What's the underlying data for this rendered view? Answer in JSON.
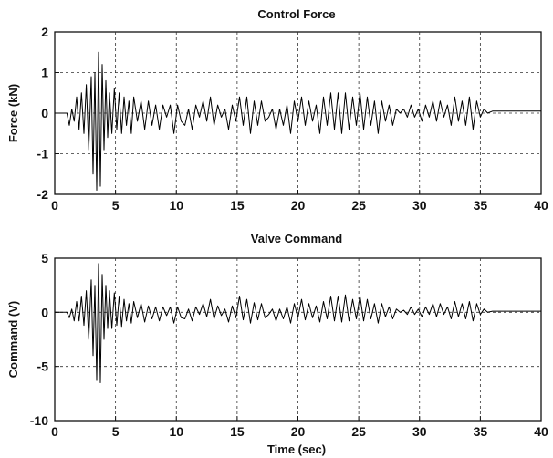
{
  "chart_data": [
    {
      "type": "line",
      "title": "Control Force",
      "xlabel": "",
      "ylabel": "Force (kN)",
      "xlim": [
        0,
        40
      ],
      "ylim": [
        -2,
        2
      ],
      "xticks": [
        0,
        5,
        10,
        15,
        20,
        25,
        30,
        35,
        40
      ],
      "yticks": [
        -2,
        -1,
        0,
        1,
        2
      ],
      "xtick_labels": [
        "0",
        "5",
        "10",
        "15",
        "20",
        "25",
        "30",
        "35",
        "40"
      ],
      "ytick_labels": [
        "-2",
        "-1",
        "0",
        "1",
        "2"
      ],
      "grid": true,
      "series": [
        {
          "x": [
            0,
            1.0,
            1.2,
            1.4,
            1.6,
            1.8,
            2.0,
            2.2,
            2.4,
            2.6,
            2.8,
            3.0,
            3.15,
            3.3,
            3.45,
            3.6,
            3.75,
            3.9,
            4.05,
            4.2,
            4.35,
            4.5,
            4.7,
            4.9,
            5.1,
            5.3,
            5.5,
            5.7,
            5.9,
            6.1,
            6.3,
            6.5,
            6.8,
            7.1,
            7.4,
            7.7,
            8.0,
            8.3,
            8.6,
            8.9,
            9.2,
            9.5,
            9.8,
            10.1,
            10.4,
            10.7,
            11.0,
            11.3,
            11.6,
            11.9,
            12.2,
            12.5,
            12.8,
            13.1,
            13.4,
            13.7,
            14.0,
            14.3,
            14.6,
            14.9,
            15.2,
            15.5,
            15.8,
            16.1,
            16.4,
            16.7,
            17.0,
            17.3,
            17.6,
            17.9,
            18.2,
            18.5,
            18.8,
            19.1,
            19.4,
            19.7,
            20.0,
            20.3,
            20.6,
            20.9,
            21.2,
            21.5,
            21.8,
            22.1,
            22.4,
            22.7,
            23.0,
            23.3,
            23.6,
            23.9,
            24.2,
            24.5,
            24.8,
            25.1,
            25.4,
            25.7,
            26.0,
            26.3,
            26.6,
            26.9,
            27.2,
            27.5,
            27.8,
            28.1,
            28.4,
            28.7,
            29.0,
            29.3,
            29.6,
            29.9,
            30.2,
            30.5,
            30.8,
            31.1,
            31.4,
            31.7,
            32.0,
            32.3,
            32.6,
            32.9,
            33.2,
            33.5,
            33.8,
            34.1,
            34.4,
            34.7,
            35.0,
            35.3,
            35.6,
            36.0,
            37.0,
            38.0,
            39.0,
            40.0
          ],
          "y": [
            0,
            0,
            -0.3,
            0.1,
            -0.2,
            0.4,
            -0.4,
            0.5,
            -0.5,
            0.7,
            -0.9,
            0.9,
            -1.5,
            1.0,
            -1.9,
            1.5,
            -1.8,
            1.2,
            -0.9,
            0.8,
            -0.6,
            0.5,
            -0.5,
            0.6,
            -0.4,
            0.5,
            -0.5,
            0.4,
            -0.3,
            0.3,
            -0.5,
            0.4,
            -0.2,
            0.3,
            -0.4,
            0.3,
            -0.3,
            0.2,
            -0.4,
            0.2,
            -0.1,
            0.2,
            -0.5,
            0.2,
            -0.2,
            -0.3,
            0.1,
            -0.4,
            0.2,
            -0.1,
            0.3,
            -0.2,
            0.4,
            -0.3,
            0.2,
            -0.1,
            0.1,
            -0.4,
            0.2,
            -0.2,
            0.4,
            -0.3,
            0.4,
            -0.5,
            0.3,
            -0.3,
            0.3,
            -0.2,
            -0.1,
            0.1,
            -0.4,
            0.1,
            -0.3,
            0.2,
            -0.5,
            0.3,
            -0.2,
            0.4,
            -0.3,
            0.3,
            -0.2,
            0.2,
            -0.5,
            0.4,
            -0.3,
            0.5,
            -0.4,
            0.5,
            -0.5,
            0.5,
            -0.4,
            0.4,
            -0.3,
            0.5,
            -0.4,
            0.4,
            -0.3,
            0.3,
            -0.5,
            0.3,
            -0.2,
            0.2,
            -0.3,
            0.1,
            0.0,
            0.1,
            -0.1,
            0.2,
            -0.1,
            0.1,
            -0.2,
            0.2,
            -0.1,
            0.3,
            -0.2,
            0.3,
            -0.1,
            0.2,
            -0.3,
            0.4,
            -0.2,
            0.3,
            -0.3,
            0.4,
            -0.4,
            0.3,
            -0.1,
            0.1,
            0.0,
            0.05,
            0.05,
            0.05,
            0.05,
            0.05
          ]
        }
      ]
    },
    {
      "type": "line",
      "title": "Valve Command",
      "xlabel": "Time (sec)",
      "ylabel": "Command (V)",
      "xlim": [
        0,
        40
      ],
      "ylim": [
        -10,
        5
      ],
      "xticks": [
        0,
        5,
        10,
        15,
        20,
        25,
        30,
        35,
        40
      ],
      "yticks": [
        -10,
        -5,
        0,
        5
      ],
      "xtick_labels": [
        "0",
        "5",
        "10",
        "15",
        "20",
        "25",
        "30",
        "35",
        "40"
      ],
      "ytick_labels": [
        "-10",
        "-5",
        "0",
        "5"
      ],
      "grid": true,
      "series": [
        {
          "x": [
            0,
            1.0,
            1.2,
            1.4,
            1.6,
            1.8,
            2.0,
            2.2,
            2.4,
            2.6,
            2.8,
            3.0,
            3.15,
            3.3,
            3.45,
            3.6,
            3.75,
            3.9,
            4.05,
            4.2,
            4.35,
            4.5,
            4.7,
            4.9,
            5.1,
            5.3,
            5.5,
            5.7,
            5.9,
            6.1,
            6.3,
            6.5,
            6.8,
            7.1,
            7.4,
            7.7,
            8.0,
            8.3,
            8.6,
            8.9,
            9.2,
            9.5,
            9.8,
            10.1,
            10.4,
            10.7,
            11.0,
            11.3,
            11.6,
            11.9,
            12.2,
            12.5,
            12.8,
            13.1,
            13.4,
            13.7,
            14.0,
            14.3,
            14.6,
            14.9,
            15.2,
            15.5,
            15.8,
            16.1,
            16.4,
            16.7,
            17.0,
            17.3,
            17.6,
            17.9,
            18.2,
            18.5,
            18.8,
            19.1,
            19.4,
            19.7,
            20.0,
            20.3,
            20.6,
            20.9,
            21.2,
            21.5,
            21.8,
            22.1,
            22.4,
            22.7,
            23.0,
            23.3,
            23.6,
            23.9,
            24.2,
            24.5,
            24.8,
            25.1,
            25.4,
            25.7,
            26.0,
            26.3,
            26.6,
            26.9,
            27.2,
            27.5,
            27.8,
            28.1,
            28.4,
            28.7,
            29.0,
            29.3,
            29.6,
            29.9,
            30.2,
            30.5,
            30.8,
            31.1,
            31.4,
            31.7,
            32.0,
            32.3,
            32.6,
            32.9,
            33.2,
            33.5,
            33.8,
            34.1,
            34.4,
            34.7,
            35.0,
            35.3,
            35.6,
            36.0,
            37.0,
            38.0,
            39.0,
            40.0
          ],
          "y": [
            0,
            0,
            -0.5,
            0.3,
            -0.8,
            1.0,
            -0.8,
            1.5,
            -1.2,
            2.0,
            -2.5,
            3.0,
            -4.0,
            2.5,
            -6.3,
            4.5,
            -6.5,
            3.5,
            -2.5,
            2.5,
            -1.5,
            2.0,
            -1.5,
            1.8,
            -1.2,
            1.5,
            -1.3,
            1.2,
            -0.8,
            0.8,
            -1.0,
            1.0,
            -0.5,
            0.8,
            -0.9,
            0.6,
            -0.6,
            0.5,
            -0.8,
            0.5,
            -0.3,
            0.5,
            -1.0,
            0.5,
            -0.5,
            -0.6,
            0.3,
            -0.8,
            0.5,
            -0.2,
            0.8,
            -0.4,
            1.2,
            -0.6,
            0.6,
            -0.3,
            0.3,
            -0.9,
            0.6,
            -0.5,
            1.5,
            -0.7,
            1.2,
            -1.0,
            0.9,
            -0.7,
            0.8,
            -0.5,
            -0.2,
            0.3,
            -0.8,
            0.3,
            -0.6,
            0.5,
            -1.0,
            0.8,
            -0.5,
            1.2,
            -0.7,
            0.8,
            -0.5,
            0.6,
            -0.9,
            1.0,
            -0.6,
            1.5,
            -0.8,
            1.5,
            -0.9,
            1.6,
            -0.8,
            1.2,
            -0.6,
            1.5,
            -0.8,
            1.2,
            -0.6,
            0.8,
            -1.0,
            0.8,
            -0.4,
            0.5,
            -0.6,
            0.3,
            0.0,
            0.2,
            -0.2,
            0.5,
            -0.2,
            0.3,
            -0.4,
            0.5,
            -0.2,
            0.8,
            -0.4,
            0.8,
            -0.2,
            0.5,
            -0.6,
            1.0,
            -0.4,
            0.8,
            -0.6,
            1.0,
            -0.8,
            0.8,
            -0.2,
            0.3,
            0.0,
            0.1,
            0.1,
            0.1,
            0.1,
            0.1
          ]
        }
      ]
    }
  ]
}
